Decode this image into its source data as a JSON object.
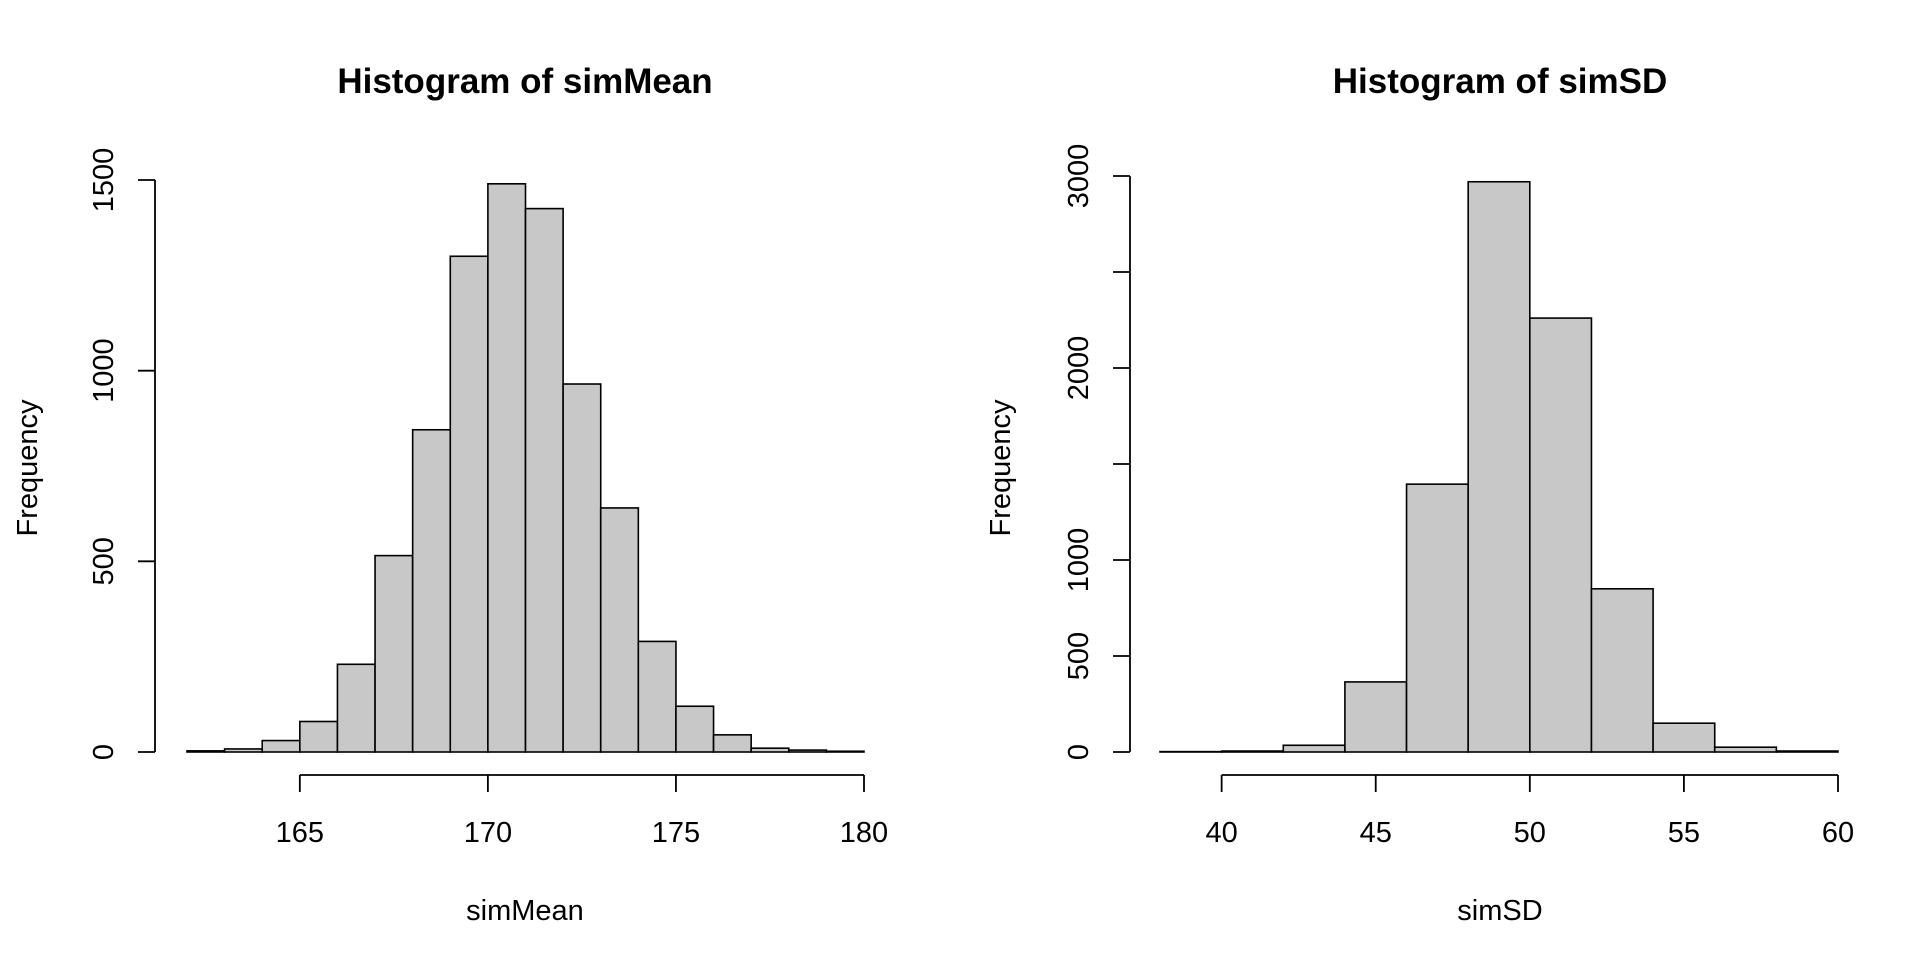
{
  "chart_data": [
    {
      "type": "bar",
      "title": "Histogram of simMean",
      "xlabel": "simMean",
      "ylabel": "Frequency",
      "bin_edges": [
        162,
        163,
        164,
        165,
        166,
        167,
        168,
        169,
        170,
        171,
        172,
        173,
        174,
        175,
        176,
        177,
        178,
        179,
        180
      ],
      "values": [
        3,
        8,
        30,
        80,
        230,
        515,
        845,
        1300,
        1490,
        1425,
        965,
        640,
        290,
        120,
        45,
        10,
        5,
        2
      ],
      "xlim": [
        162,
        180
      ],
      "ylim": [
        0,
        1500
      ],
      "x_ticks": [
        165,
        170,
        175,
        180
      ],
      "x_tick_labels": [
        "165",
        "170",
        "175",
        "180"
      ],
      "y_ticks": [
        0,
        500,
        1000,
        1500
      ],
      "y_tick_labels": [
        "0",
        "500",
        "1000",
        "1500"
      ],
      "bar_color": "#c8c8c8",
      "grid": false
    },
    {
      "type": "bar",
      "title": "Histogram of simSD",
      "xlabel": "simSD",
      "ylabel": "Frequency",
      "bin_edges": [
        38,
        40,
        42,
        44,
        46,
        48,
        50,
        52,
        54,
        56,
        58,
        60
      ],
      "values": [
        2,
        5,
        35,
        365,
        1395,
        2970,
        2260,
        850,
        150,
        25,
        5
      ],
      "xlim": [
        38,
        60
      ],
      "ylim": [
        0,
        3000
      ],
      "x_ticks": [
        40,
        45,
        50,
        55,
        60
      ],
      "x_tick_labels": [
        "40",
        "45",
        "50",
        "55",
        "60"
      ],
      "y_ticks": [
        0,
        500,
        1000,
        1500,
        2000,
        2500,
        3000
      ],
      "y_tick_labels": [
        "0",
        "500",
        "1000",
        "",
        "2000",
        "",
        "3000"
      ],
      "bar_color": "#c8c8c8",
      "grid": false
    }
  ]
}
